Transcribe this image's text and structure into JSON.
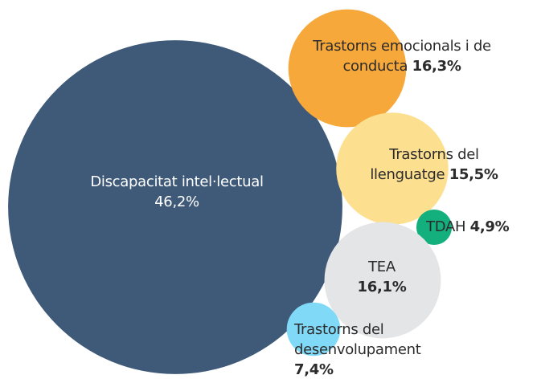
{
  "chart_data": {
    "type": "bubble",
    "categories": [
      "Discapacitat intel·lectual",
      "Trastorns emocionals i de conducta",
      "Trastorns del llenguatge",
      "TDAH",
      "TEA",
      "Trastorns del desenvolupament"
    ],
    "values": [
      46.2,
      16.3,
      15.5,
      4.9,
      16.1,
      7.4
    ],
    "value_labels": [
      "46,2%",
      "16,3%",
      "15,5%",
      "4,9%",
      "16,1%",
      "7,4%"
    ],
    "colors": [
      "#3e5a78",
      "#f7a83a",
      "#fddf90",
      "#13b07e",
      "#e4e5e7",
      "#80d9f7"
    ]
  }
}
